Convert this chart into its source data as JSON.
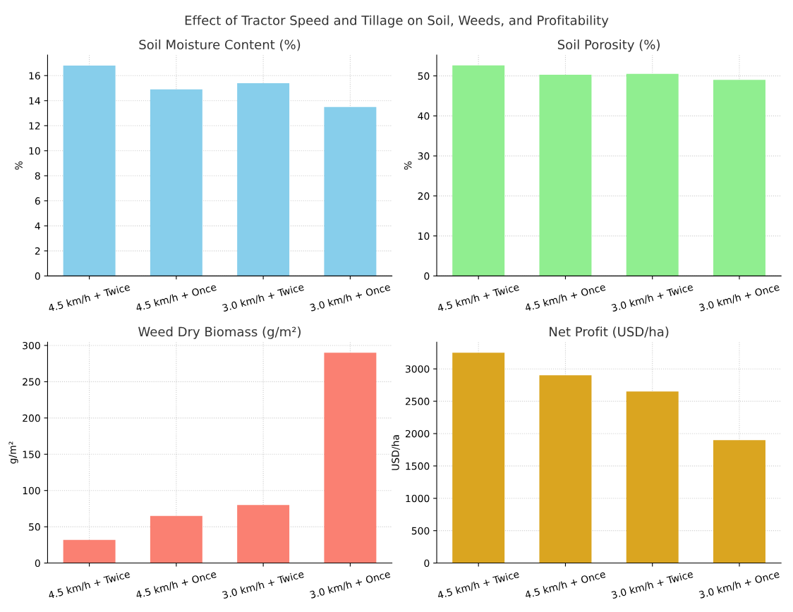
{
  "chart_data": [
    {
      "type": "bar",
      "title": "Soil Moisture Content (%)",
      "annotations": [
        "Effect of Tractor Speed and Tillage on Soil, Weeds, and Profitability"
      ],
      "ylabel": "%",
      "categories": [
        "4.5 km/h + Twice",
        "4.5 km/h + Once",
        "3.0 km/h + Twice",
        "3.0 km/h + Once"
      ],
      "values": [
        16.8,
        14.9,
        15.4,
        13.5
      ],
      "color": "#87ceeb",
      "ylim": [
        0,
        17.64
      ],
      "yticks": [
        0,
        2,
        4,
        6,
        8,
        10,
        12,
        14,
        16
      ],
      "grid": true
    },
    {
      "type": "bar",
      "title": "Soil Porosity (%)",
      "ylabel": "%",
      "categories": [
        "4.5 km/h + Twice",
        "4.5 km/h + Once",
        "3.0 km/h + Twice",
        "3.0 km/h + Once"
      ],
      "values": [
        52.6,
        50.3,
        50.5,
        49.0
      ],
      "color": "#90ee90",
      "ylim": [
        0,
        55.2
      ],
      "yticks": [
        0,
        10,
        20,
        30,
        40,
        50
      ],
      "grid": true
    },
    {
      "type": "bar",
      "title": "Weed Dry Biomass (g/m²)",
      "ylabel": "g/m²",
      "categories": [
        "4.5 km/h + Twice",
        "4.5 km/h + Once",
        "3.0 km/h + Twice",
        "3.0 km/h + Once"
      ],
      "values": [
        32,
        65,
        80,
        290
      ],
      "color": "#fa8072",
      "ylim": [
        0,
        304.5
      ],
      "yticks": [
        0,
        50,
        100,
        150,
        200,
        250,
        300
      ],
      "grid": true
    },
    {
      "type": "bar",
      "title": "Net Profit (USD/ha)",
      "ylabel": "USD/ha",
      "categories": [
        "4.5 km/h + Twice",
        "4.5 km/h + Once",
        "3.0 km/h + Twice",
        "3.0 km/h + Once"
      ],
      "values": [
        3250,
        2900,
        2650,
        1900
      ],
      "color": "#daa520",
      "ylim": [
        0,
        3412.5
      ],
      "yticks": [
        0,
        500,
        1000,
        1500,
        2000,
        2500,
        3000
      ],
      "grid": true
    }
  ]
}
